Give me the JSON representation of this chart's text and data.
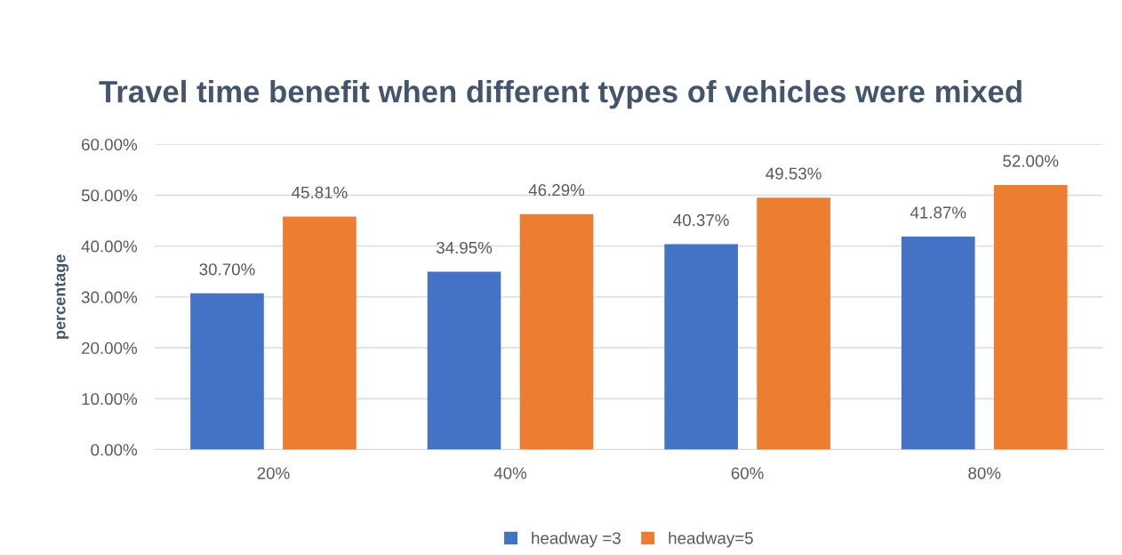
{
  "chart_data": {
    "type": "bar",
    "title": "Travel time benefit when different types of vehicles were mixed",
    "ylabel": "percentage",
    "categories": [
      "20%",
      "40%",
      "60%",
      "80%"
    ],
    "series": [
      {
        "name": "headway =3",
        "color": "#4472c4",
        "values": [
          30.7,
          34.95,
          40.37,
          41.87
        ],
        "value_labels": [
          "30.70%",
          "34.95%",
          "40.37%",
          "41.87%"
        ]
      },
      {
        "name": "headway=5",
        "color": "#ed7d31",
        "values": [
          45.81,
          46.29,
          49.53,
          52.0
        ],
        "value_labels": [
          "45.81%",
          "46.29%",
          "49.53%",
          "52.00%"
        ]
      }
    ],
    "ylim": [
      0,
      60
    ],
    "yticks": [
      {
        "value": 0,
        "label": "0.00%"
      },
      {
        "value": 10,
        "label": "10.00%"
      },
      {
        "value": 20,
        "label": "20.00%"
      },
      {
        "value": 30,
        "label": "30.00%"
      },
      {
        "value": 40,
        "label": "40.00%"
      },
      {
        "value": 50,
        "label": "50.00%"
      },
      {
        "value": 60,
        "label": "60.00%"
      }
    ],
    "grid": "y",
    "legend": "bottom"
  }
}
